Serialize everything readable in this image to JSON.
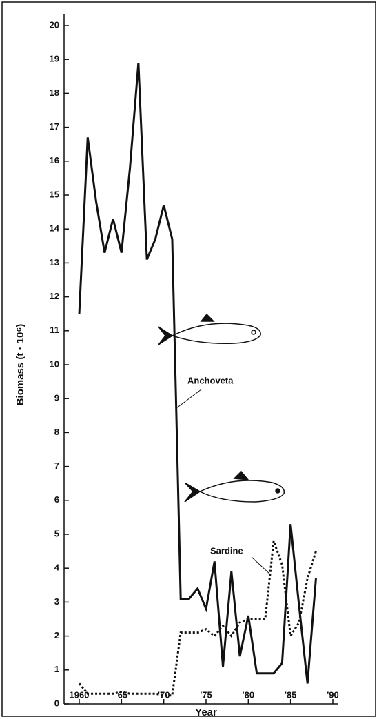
{
  "chart_data": {
    "type": "line",
    "x_label": "Year",
    "y_label": "Biomass (t · 10⁶)",
    "x": [
      1960,
      1961,
      1962,
      1963,
      1964,
      1965,
      1966,
      1967,
      1968,
      1969,
      1970,
      1971,
      1972,
      1973,
      1974,
      1975,
      1976,
      1977,
      1978,
      1979,
      1980,
      1981,
      1982,
      1983,
      1984,
      1985,
      1986,
      1987,
      1988
    ],
    "series": [
      {
        "name": "Anchoveta",
        "color": "#111111",
        "style": "solid",
        "values": [
          11.5,
          16.7,
          14.8,
          13.3,
          14.3,
          13.3,
          15.8,
          18.9,
          13.1,
          13.7,
          14.7,
          13.7,
          3.1,
          3.1,
          3.4,
          2.8,
          4.2,
          1.1,
          3.9,
          1.4,
          2.6,
          0.9,
          0.9,
          0.9,
          1.2,
          5.3,
          2.9,
          0.6,
          3.7
        ]
      },
      {
        "name": "Sardine",
        "color": "#111111",
        "style": "dotted",
        "values": [
          0.6,
          0.3,
          0.3,
          0.3,
          0.3,
          0.35,
          0.3,
          0.3,
          0.3,
          0.3,
          0.25,
          0.25,
          2.1,
          2.1,
          2.1,
          2.2,
          2.0,
          2.3,
          2.0,
          2.4,
          2.5,
          2.5,
          2.5,
          4.8,
          4.1,
          2.0,
          2.4,
          3.7,
          4.5
        ]
      }
    ],
    "xlim": [
      1960,
      1990
    ],
    "xticks": [
      1960,
      {
        "value": 1965,
        "label": "'65"
      },
      {
        "value": 1970,
        "label": "'70"
      },
      {
        "value": 1975,
        "label": "'75"
      },
      {
        "value": 1980,
        "label": "'80"
      },
      {
        "value": 1985,
        "label": "'85"
      },
      {
        "value": 1990,
        "label": "'90"
      }
    ],
    "ylim": [
      0,
      20
    ],
    "yticks": [
      0,
      1,
      2,
      3,
      4,
      5,
      6,
      7,
      8,
      9,
      10,
      11,
      12,
      13,
      14,
      15,
      16,
      17,
      18,
      19,
      20
    ],
    "grid": false
  }
}
